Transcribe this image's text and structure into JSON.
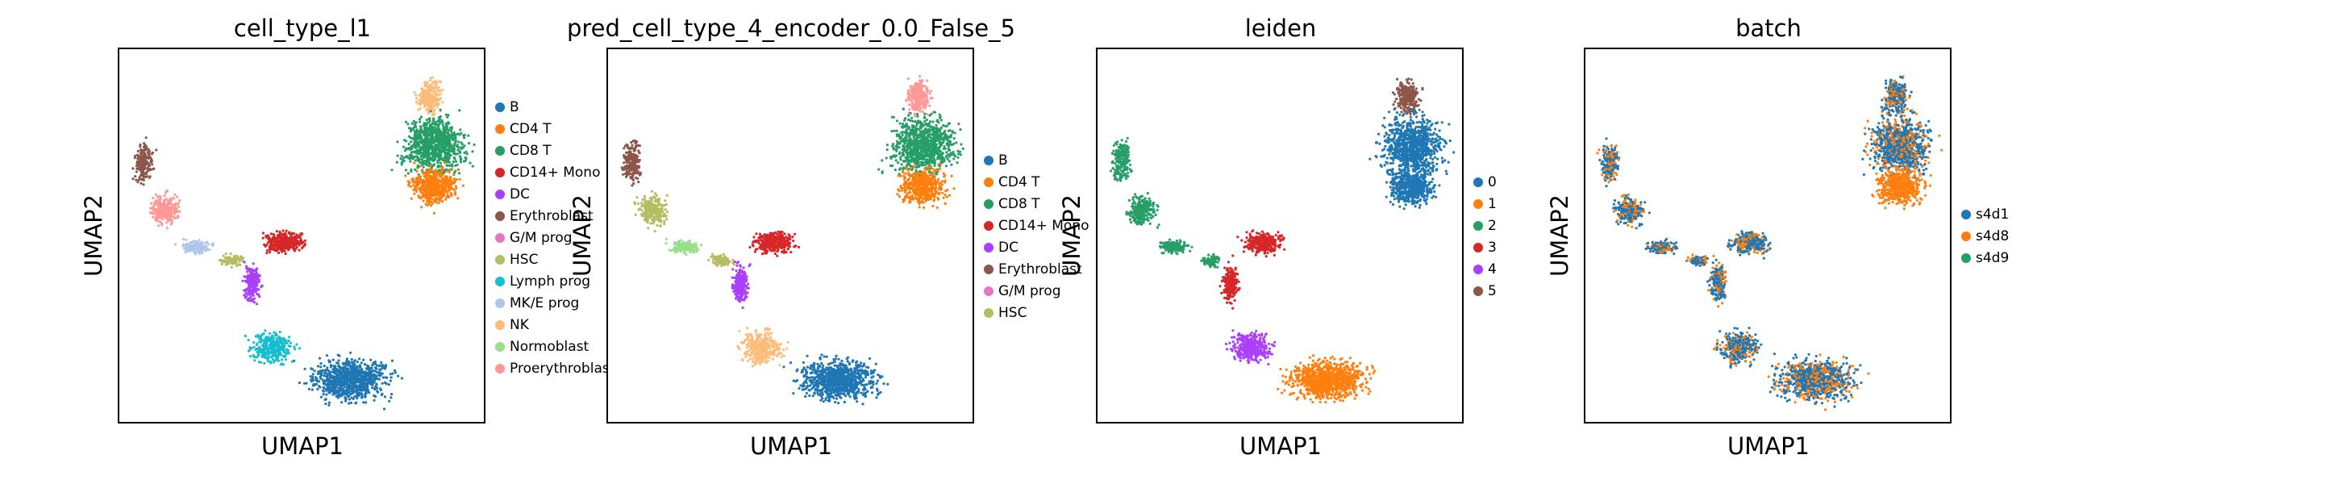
{
  "chart_data": [
    {
      "type": "scatter",
      "title": "cell_type_l1",
      "xlabel": "UMAP1",
      "ylabel": "UMAP2",
      "grid": false,
      "legend_position": "right",
      "legend": [
        {
          "label": "B",
          "color": "#1f77b4"
        },
        {
          "label": "CD4 T",
          "color": "#ff7f0e"
        },
        {
          "label": "CD8 T",
          "color": "#279e68"
        },
        {
          "label": "CD14+ Mono",
          "color": "#d62728"
        },
        {
          "label": "DC",
          "color": "#aa40fc"
        },
        {
          "label": "Erythroblast",
          "color": "#8c564b"
        },
        {
          "label": "G/M prog",
          "color": "#e377c2"
        },
        {
          "label": "HSC",
          "color": "#b5bd61"
        },
        {
          "label": "Lymph prog",
          "color": "#17becf"
        },
        {
          "label": "MK/E prog",
          "color": "#aec7e8"
        },
        {
          "label": "NK",
          "color": "#ffbb78"
        },
        {
          "label": "Normoblast",
          "color": "#98df8a"
        },
        {
          "label": "Proerythroblast",
          "color": "#ff9896"
        }
      ]
    },
    {
      "type": "scatter",
      "title": "pred_cell_type_4_encoder_0.0_False_5",
      "xlabel": "UMAP1",
      "ylabel": "UMAP2",
      "grid": false,
      "legend_position": "right",
      "legend": [
        {
          "label": "B",
          "color": "#1f77b4"
        },
        {
          "label": "CD4 T",
          "color": "#ff7f0e"
        },
        {
          "label": "CD8 T",
          "color": "#279e68"
        },
        {
          "label": "CD14+ Mono",
          "color": "#d62728"
        },
        {
          "label": "DC",
          "color": "#aa40fc"
        },
        {
          "label": "Erythroblast",
          "color": "#8c564b"
        },
        {
          "label": "G/M prog",
          "color": "#e377c2"
        },
        {
          "label": "HSC",
          "color": "#b5bd61"
        }
      ]
    },
    {
      "type": "scatter",
      "title": "leiden",
      "xlabel": "UMAP1",
      "ylabel": "UMAP2",
      "grid": false,
      "legend_position": "right",
      "legend": [
        {
          "label": "0",
          "color": "#1f77b4"
        },
        {
          "label": "1",
          "color": "#ff7f0e"
        },
        {
          "label": "2",
          "color": "#279e68"
        },
        {
          "label": "3",
          "color": "#d62728"
        },
        {
          "label": "4",
          "color": "#aa40fc"
        },
        {
          "label": "5",
          "color": "#8c564b"
        }
      ]
    },
    {
      "type": "scatter",
      "title": "batch",
      "xlabel": "UMAP1",
      "ylabel": "UMAP2",
      "grid": false,
      "legend_position": "right",
      "legend": [
        {
          "label": "s4d1",
          "color": "#1f77b4"
        },
        {
          "label": "s4d8",
          "color": "#ff7f0e"
        },
        {
          "label": "s4d9",
          "color": "#279e68"
        }
      ]
    }
  ]
}
